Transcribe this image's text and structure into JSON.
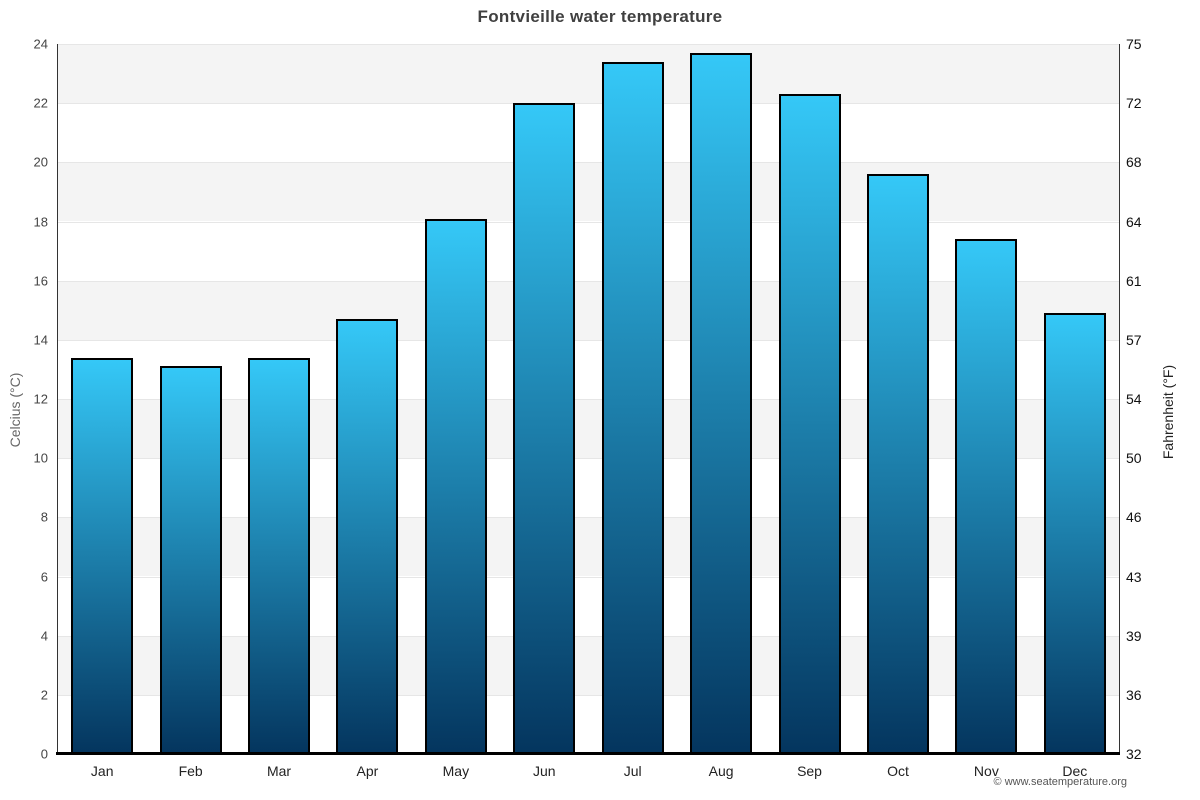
{
  "page": {
    "footer_credit": "© www.seatemperature.org"
  },
  "chart_data": {
    "type": "bar",
    "title": "Fontvieille water temperature",
    "categories": [
      "Jan",
      "Feb",
      "Mar",
      "Apr",
      "May",
      "Jun",
      "Jul",
      "Aug",
      "Sep",
      "Oct",
      "Nov",
      "Dec"
    ],
    "values": [
      13.4,
      13.1,
      13.4,
      14.7,
      18.1,
      22.0,
      23.4,
      23.7,
      22.3,
      19.6,
      17.4,
      14.9
    ],
    "y_left": {
      "label": "Celcius (°C)",
      "ticks": [
        "24",
        "22",
        "20",
        "18",
        "16",
        "14",
        "12",
        "10",
        "8",
        "6",
        "4",
        "2",
        "0"
      ],
      "lim": [
        0,
        24
      ]
    },
    "y_right": {
      "label": "Fahrenheit (°F)",
      "ticks": [
        "75",
        "72",
        "68",
        "64",
        "61",
        "57",
        "54",
        "50",
        "46",
        "43",
        "39",
        "36",
        "32"
      ]
    },
    "legend": "none",
    "grid": {
      "alternate_bands": true
    },
    "colors": {
      "band": "#f4f4f4",
      "band_alt": "#ffffff",
      "grid_line": "#e6e6e6",
      "bar_top": "#35c8f7",
      "bar_bottom": "#04355e",
      "bar_border": "#000000",
      "axis_line": "#000000",
      "title": "#404040"
    }
  }
}
